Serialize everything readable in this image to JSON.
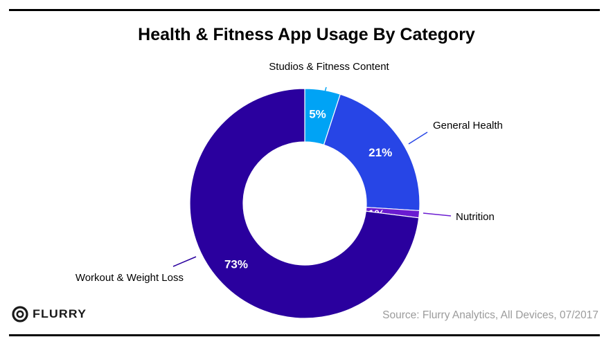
{
  "header": {
    "title": "Health & Fitness App Usage By Category"
  },
  "chart_data": {
    "type": "pie",
    "variant": "donut",
    "title": "Health & Fitness App Usage By Category",
    "slices": [
      {
        "label": "Studios & Fitness Content",
        "value": 5,
        "display": "5%",
        "color": "#00a3f5"
      },
      {
        "label": "General Health",
        "value": 21,
        "display": "21%",
        "color": "#2745e6"
      },
      {
        "label": "Nutrition",
        "value": 1,
        "display": "1%",
        "color": "#6a1bd1"
      },
      {
        "label": "Workout & Weight Loss",
        "value": 73,
        "display": "73%",
        "color": "#2a009e"
      }
    ]
  },
  "footer": {
    "logo_text": "FLURRY",
    "source": "Source: Flurry Analytics, All Devices, 07/2017"
  }
}
